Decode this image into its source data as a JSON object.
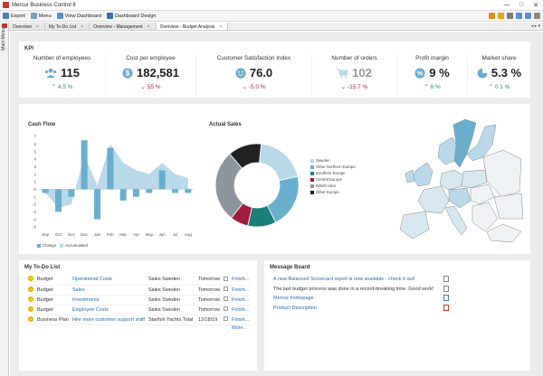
{
  "window": {
    "title": "Mercur Business Control 8",
    "controls": [
      "—",
      "□",
      "✕"
    ]
  },
  "toolbar": {
    "export": "Export",
    "menu": "Menu",
    "view_dashboard": "View Dashboard",
    "dashboard_design": "Dashboard Design"
  },
  "sidebar": {
    "main_menu": "Main Menu"
  },
  "tabs": [
    {
      "label": "Overview"
    },
    {
      "label": "My To-Do List"
    },
    {
      "label": "Overview - Management"
    },
    {
      "label": "Overview - Budget Analysis"
    }
  ],
  "kpi": {
    "title": "KPI",
    "items": [
      {
        "label": "Number of employees",
        "value": "115",
        "change": "4.5 %",
        "dir": "up"
      },
      {
        "label": "Cost per employee",
        "value": "182,581",
        "change": "55 %",
        "dir": "down"
      },
      {
        "label": "Customer Satisfaction Index",
        "value": "76.0",
        "change": "-5.0 %",
        "dir": "down"
      },
      {
        "label": "Number of orders",
        "value": "102",
        "change": "-15.7 %",
        "dir": "down"
      },
      {
        "label": "Profit margin",
        "value": "9 %",
        "change": "6 %",
        "dir": "up"
      },
      {
        "label": "Market share",
        "value": "5.3 %",
        "change": "0.1 %",
        "dir": "up"
      }
    ]
  },
  "cashflow": {
    "title": "Cash Flow",
    "legend_change": "Change",
    "legend_accumulated": "Accumulated"
  },
  "actual_sales": {
    "title": "Actual Sales",
    "legend": [
      "Sweden",
      "Other Northern Europe",
      "Southern Europe",
      "Central Europe",
      "British Isles",
      "Other Europe"
    ]
  },
  "todo": {
    "title": "My To-Do List",
    "rows": [
      {
        "cat": "Budget",
        "task": "Operational Costs",
        "who": "Sales Sweden",
        "when": "Tomorrow",
        "status": "Finish..."
      },
      {
        "cat": "Budget",
        "task": "Sales",
        "who": "Sales Sweden",
        "when": "Tomorrow",
        "status": "Finish..."
      },
      {
        "cat": "Budget",
        "task": "Investments",
        "who": "Sales Sweden",
        "when": "Tomorrow",
        "status": "Finish..."
      },
      {
        "cat": "Budget",
        "task": "Employee Costs",
        "who": "Sales Sweden",
        "when": "Tomorrow",
        "status": "Finish..."
      },
      {
        "cat": "Business Plan",
        "task": "Hire more customer support staff",
        "who": "Starfish Yachts Total",
        "when": "12/18/19",
        "status": "Finish..."
      }
    ],
    "more": "More..."
  },
  "messages": {
    "title": "Message Board",
    "items": [
      {
        "text": "A new Balanced Scorecard report is now available - check it out!",
        "link": true
      },
      {
        "text": "The last budget process was done in a record-breaking time. Good work!",
        "link": false
      },
      {
        "text": "Mercur homepage",
        "link": true
      },
      {
        "text": "Product Description",
        "link": true
      }
    ]
  },
  "chart_data": [
    {
      "type": "bar",
      "title": "Cash Flow",
      "categories": [
        "Sep",
        "Oct",
        "Nov",
        "Dec",
        "Jan",
        "Feb",
        "Mar",
        "Apr",
        "May",
        "Jun",
        "Jul",
        "Aug"
      ],
      "ylim": [
        -5,
        7
      ],
      "yticks": [
        7,
        6,
        5,
        4,
        3,
        2,
        1,
        0,
        -1,
        -2,
        -3,
        -4,
        -5
      ],
      "series": [
        {
          "name": "Change",
          "values": [
            -0.5,
            -3,
            -1,
            6.5,
            -4,
            5.5,
            -1.5,
            -1,
            -0.5,
            2.5,
            -0.5,
            -0.5
          ]
        },
        {
          "name": "Accumulated",
          "values": [
            -0.5,
            -2.5,
            -2,
            4.5,
            0.5,
            6,
            3.5,
            2.5,
            2,
            3.5,
            2,
            1.5
          ]
        }
      ]
    },
    {
      "type": "pie",
      "title": "Actual Sales",
      "categories": [
        "Sweden",
        "Other Northern Europe",
        "Southern Europe",
        "Central Europe",
        "British Isles",
        "Other Europe"
      ],
      "values": [
        20,
        21,
        11,
        7,
        28,
        13
      ]
    }
  ],
  "colors": {
    "sweden": "#b9d9ea",
    "other_northern": "#6aaecf",
    "southern": "#1a7f78",
    "central": "#a11c3a",
    "british": "#8d969e",
    "other": "#222222",
    "bar": "#6aaecf",
    "area": "#b9d9ea"
  }
}
